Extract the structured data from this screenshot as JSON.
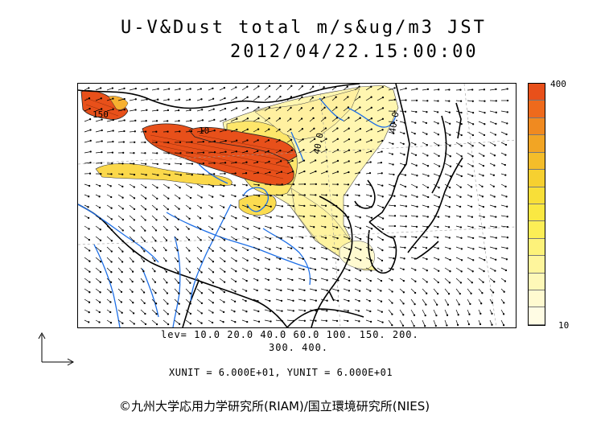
{
  "title": {
    "line1": "U-V&Dust total m/s&ug/m3 JST",
    "line2": "2012/04/22.15:00:00"
  },
  "colorbar": {
    "max_label": "400",
    "min_label": "10",
    "colors": [
      "#e8501a",
      "#ee6a1c",
      "#f08a20",
      "#f2a524",
      "#f4bd2a",
      "#f6d030",
      "#f8df38",
      "#fae842",
      "#fcee56",
      "#fdf27a",
      "#fef59c",
      "#fef8b8",
      "#fffad0",
      "#fffce4"
    ]
  },
  "map": {
    "contour_labels": [
      "150",
      "10",
      "40.0",
      "40.0"
    ],
    "dust_color_high": "#e8501a",
    "dust_color_low": "#fff6b0",
    "river_color": "#1e6fe6"
  },
  "levels": {
    "line1": "lev= 10.0 20.0 40.0 60.0 100. 150. 200.",
    "line2": "300. 400."
  },
  "units": "XUNIT = 6.000E+01, YUNIT = 6.000E+01",
  "copyright": "©九州大学応用力学研究所(RIAM)/国立環境研究所(NIES)"
}
